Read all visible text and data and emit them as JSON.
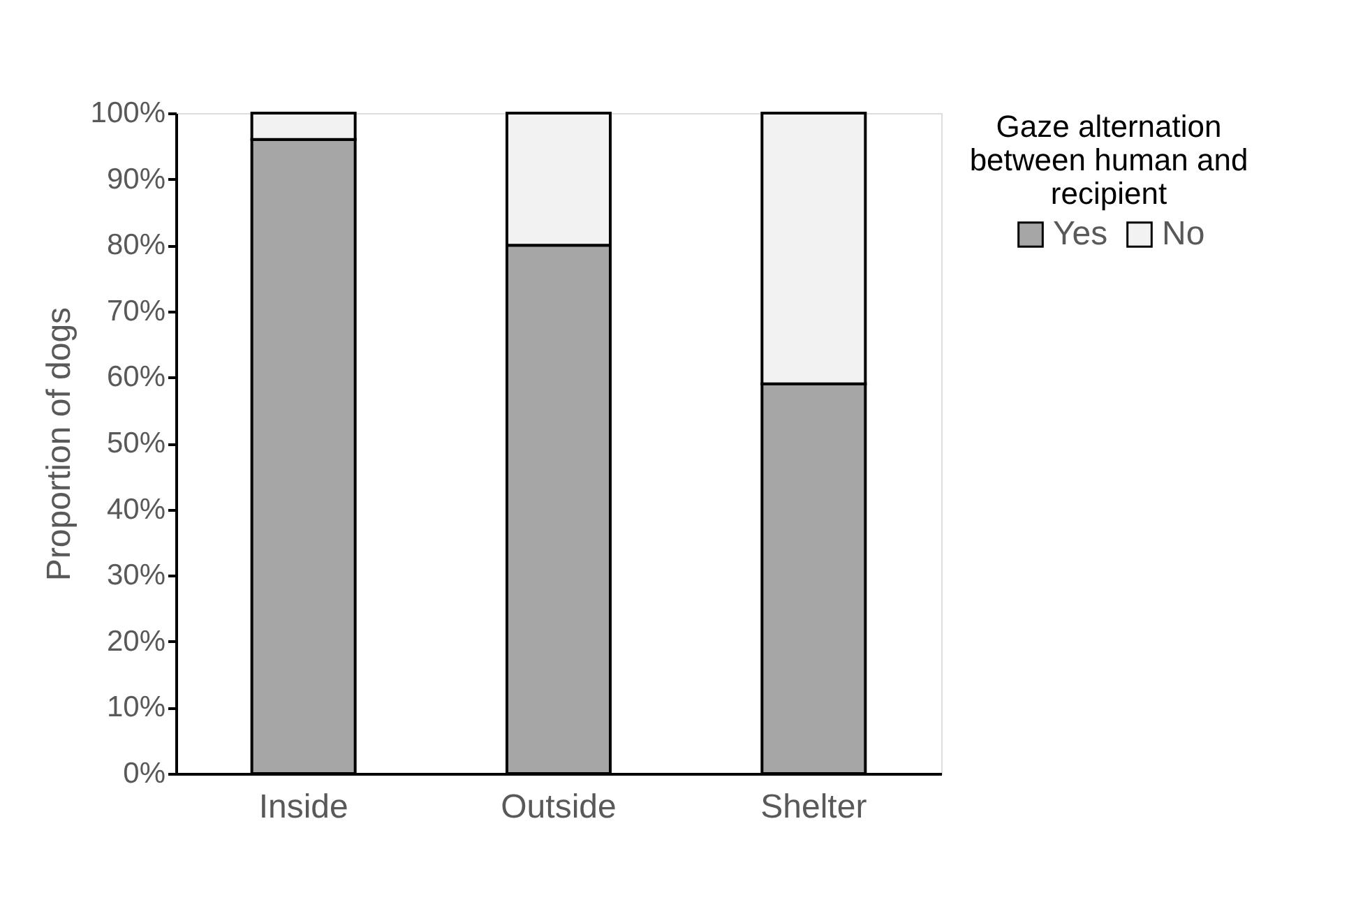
{
  "chart_data": {
    "type": "bar",
    "stacked": true,
    "categories": [
      "Inside",
      "Outside",
      "Shelter"
    ],
    "series": [
      {
        "name": "Yes",
        "color": "#a6a6a6",
        "values": [
          96,
          80,
          59
        ]
      },
      {
        "name": "No",
        "color": "#f2f2f2",
        "values": [
          4,
          20,
          41
        ]
      }
    ],
    "ylabel": "Proportion of dogs",
    "legend_title": "Gaze alternation between human and recipient",
    "legend": "right",
    "ylim": [
      0,
      100
    ],
    "yticks": [
      {
        "value": 0,
        "label": "0%"
      },
      {
        "value": 10,
        "label": "10%"
      },
      {
        "value": 20,
        "label": "20%"
      },
      {
        "value": 30,
        "label": "30%"
      },
      {
        "value": 40,
        "label": "40%"
      },
      {
        "value": 50,
        "label": "50%"
      },
      {
        "value": 60,
        "label": "60%"
      },
      {
        "value": 70,
        "label": "70%"
      },
      {
        "value": 80,
        "label": "80%"
      },
      {
        "value": 90,
        "label": "90%"
      },
      {
        "value": 100,
        "label": "100%"
      }
    ],
    "grid": false
  }
}
